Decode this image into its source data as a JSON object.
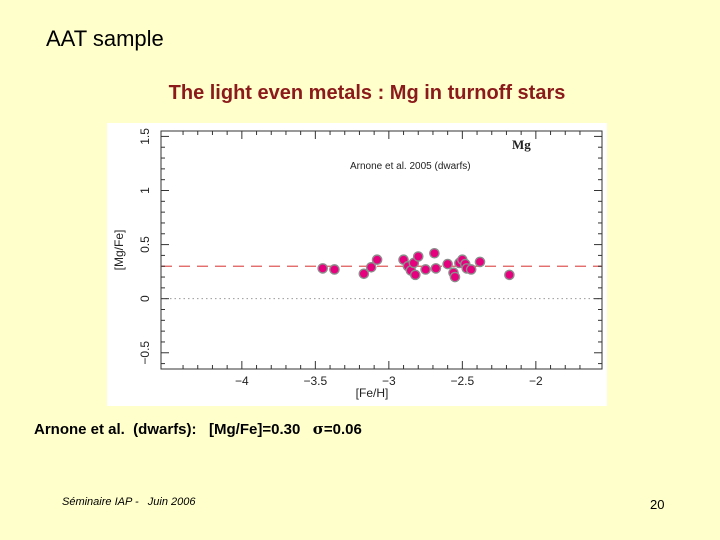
{
  "slide": {
    "title": "AAT sample",
    "subtitle": "The light even metals : Mg in turnoff stars",
    "caption_prefix": "Arnone et al.  (dwarfs):   [Mg/Fe]=0.30   ",
    "caption_sigma_symbol": "σ",
    "caption_sigma_value": "=0.06",
    "footer": "Séminaire IAP -   Juin 2006",
    "page_number": "20"
  },
  "colors": {
    "background": "#ffffcc",
    "subtitle": "#8b1a1a",
    "point_fill": "#e6007e",
    "point_stroke": "#8c8c8c",
    "mean_line": "#e05a5a",
    "zero_line": "#9a9a9a"
  },
  "chart_data": {
    "type": "scatter",
    "xlabel": "[Fe/H]",
    "ylabel": "[Mg/Fe]",
    "xlim": [
      -4.55,
      -1.55
    ],
    "ylim": [
      -0.65,
      1.55
    ],
    "xticks": [
      -4,
      -3.5,
      -3,
      -2.5,
      -2
    ],
    "xtick_labels": [
      "−4",
      "−3.5",
      "−3",
      "−2.5",
      "−2"
    ],
    "yticks": [
      -0.5,
      0,
      0.5,
      1,
      1.5
    ],
    "ytick_labels": [
      "−0.5",
      "0",
      "0.5",
      "1",
      "1.5"
    ],
    "annotation": "Arnone et al. 2005    (dwarfs)",
    "element_label": "Mg",
    "mean_line": 0.3,
    "zero_line": 0,
    "grid": false,
    "points": [
      {
        "x": -3.45,
        "y": 0.28
      },
      {
        "x": -3.37,
        "y": 0.27
      },
      {
        "x": -3.17,
        "y": 0.23
      },
      {
        "x": -3.12,
        "y": 0.29
      },
      {
        "x": -3.08,
        "y": 0.36
      },
      {
        "x": -2.9,
        "y": 0.36
      },
      {
        "x": -2.87,
        "y": 0.3
      },
      {
        "x": -2.85,
        "y": 0.26
      },
      {
        "x": -2.83,
        "y": 0.33
      },
      {
        "x": -2.82,
        "y": 0.22
      },
      {
        "x": -2.8,
        "y": 0.39
      },
      {
        "x": -2.75,
        "y": 0.27
      },
      {
        "x": -2.69,
        "y": 0.42
      },
      {
        "x": -2.68,
        "y": 0.28
      },
      {
        "x": -2.6,
        "y": 0.32
      },
      {
        "x": -2.56,
        "y": 0.24
      },
      {
        "x": -2.55,
        "y": 0.2
      },
      {
        "x": -2.52,
        "y": 0.33
      },
      {
        "x": -2.5,
        "y": 0.36
      },
      {
        "x": -2.48,
        "y": 0.32
      },
      {
        "x": -2.47,
        "y": 0.28
      },
      {
        "x": -2.44,
        "y": 0.27
      },
      {
        "x": -2.38,
        "y": 0.34
      },
      {
        "x": -2.18,
        "y": 0.22
      }
    ]
  }
}
